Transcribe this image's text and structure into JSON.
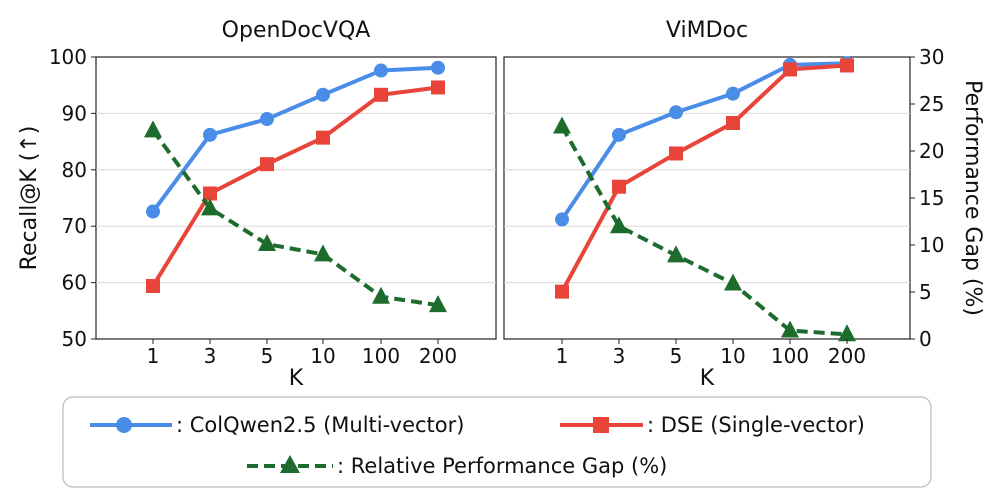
{
  "chart_data": [
    {
      "type": "line",
      "title": "OpenDocVQA",
      "xlabel": "K",
      "ylabel": "Recall@K (↑)",
      "categories": [
        "1",
        "3",
        "5",
        "10",
        "100",
        "200"
      ],
      "ylim": [
        50,
        100
      ],
      "yticks": [
        50,
        60,
        70,
        80,
        90,
        100
      ],
      "y2lim": [
        0,
        30
      ],
      "y2ticks": [
        0,
        5,
        10,
        15,
        20,
        25,
        30
      ],
      "grid": "horizontal",
      "series": [
        {
          "name": "ColQwen2.5 (Multi-vector)",
          "axis": "left",
          "values": [
            72.6,
            86.2,
            89.0,
            93.3,
            97.6,
            98.1
          ]
        },
        {
          "name": "DSE (Single-vector)",
          "axis": "left",
          "values": [
            59.4,
            75.8,
            81.0,
            85.7,
            93.3,
            94.6
          ]
        },
        {
          "name": "Relative Performance Gap (%)",
          "axis": "right",
          "values": [
            22.2,
            13.9,
            10.1,
            9.0,
            4.5,
            3.6
          ]
        }
      ]
    },
    {
      "type": "line",
      "title": "ViMDoc",
      "xlabel": "K",
      "y2label": "Performance Gap (%)",
      "categories": [
        "1",
        "3",
        "5",
        "10",
        "100",
        "200"
      ],
      "ylim": [
        50,
        100
      ],
      "yticks": [
        50,
        60,
        70,
        80,
        90,
        100
      ],
      "y2lim": [
        0,
        30
      ],
      "y2ticks": [
        0,
        5,
        10,
        15,
        20,
        25,
        30
      ],
      "grid": "horizontal",
      "series": [
        {
          "name": "ColQwen2.5 (Multi-vector)",
          "axis": "left",
          "values": [
            71.2,
            86.2,
            90.2,
            93.5,
            98.6,
            98.9
          ]
        },
        {
          "name": "DSE (Single-vector)",
          "axis": "left",
          "values": [
            58.4,
            77.0,
            82.9,
            88.3,
            97.8,
            98.5
          ]
        },
        {
          "name": "Relative Performance Gap (%)",
          "axis": "right",
          "values": [
            22.6,
            12.0,
            8.9,
            5.9,
            0.9,
            0.5
          ]
        }
      ]
    }
  ],
  "legend": {
    "items": [
      {
        "label": ": ColQwen2.5 (Multi-vector)",
        "color": "#4a8de8",
        "marker": "circle"
      },
      {
        "label": ": DSE (Single-vector)",
        "color": "#e8443a",
        "marker": "square"
      },
      {
        "label": ": Relative Performance Gap (%)",
        "color": "#1e6b2e",
        "marker": "triangle"
      }
    ]
  },
  "colors": {
    "colqwen": "#4a8de8",
    "dse": "#e8443a",
    "gap": "#1e6b2e",
    "grid": "#d9d9d9"
  }
}
